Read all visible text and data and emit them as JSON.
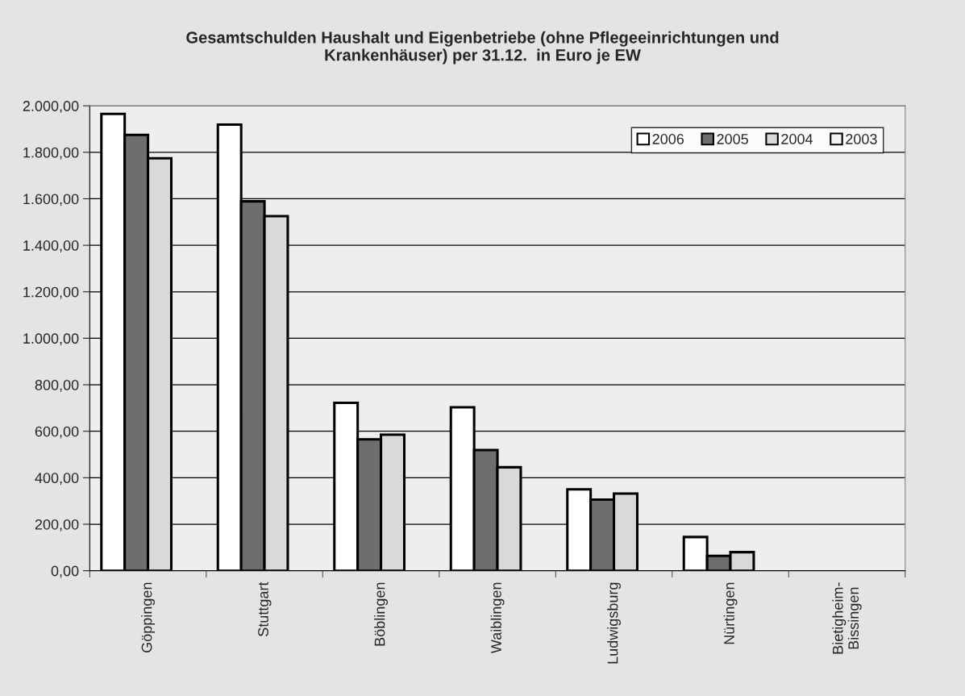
{
  "chart_data": {
    "type": "bar",
    "title": "Gesamtschulden Haushalt und Eigenbetriebe (ohne Pflegeeinrichtungen und\nKrankenhäuser) per 31.12.  in Euro je EW",
    "categories": [
      "Göppingen",
      "Stuttgart",
      "Böblingen",
      "Waiblingen",
      "Ludwigsburg",
      "Nürtingen",
      "Bietigheim-\nBissingen"
    ],
    "series": [
      {
        "name": "2006",
        "color": "#ffffff",
        "values": [
          1965,
          1919,
          722,
          703,
          350,
          145,
          null
        ]
      },
      {
        "name": "2005",
        "color": "#6e6e6e",
        "values": [
          1875,
          1589,
          565,
          519,
          306,
          64,
          null
        ]
      },
      {
        "name": "2004",
        "color": "#d9d9d9",
        "values": [
          1774,
          1525,
          585,
          445,
          332,
          80,
          null
        ]
      },
      {
        "name": "2003",
        "color": "#f2f2f2",
        "values": [
          null,
          null,
          null,
          null,
          null,
          null,
          null
        ]
      }
    ],
    "ylim": [
      0,
      2000
    ],
    "yticks": [
      {
        "value": 0,
        "label": "0,00"
      },
      {
        "value": 200,
        "label": "200,00"
      },
      {
        "value": 400,
        "label": "400,00"
      },
      {
        "value": 600,
        "label": "600,00"
      },
      {
        "value": 800,
        "label": "800,00"
      },
      {
        "value": 1000,
        "label": "1.000,00"
      },
      {
        "value": 1200,
        "label": "1.200,00"
      },
      {
        "value": 1400,
        "label": "1.400,00"
      },
      {
        "value": 1600,
        "label": "1.600,00"
      },
      {
        "value": 1800,
        "label": "1.800,00"
      },
      {
        "value": 2000,
        "label": "2.000,00"
      }
    ],
    "grid": "y",
    "legend": "top right"
  }
}
